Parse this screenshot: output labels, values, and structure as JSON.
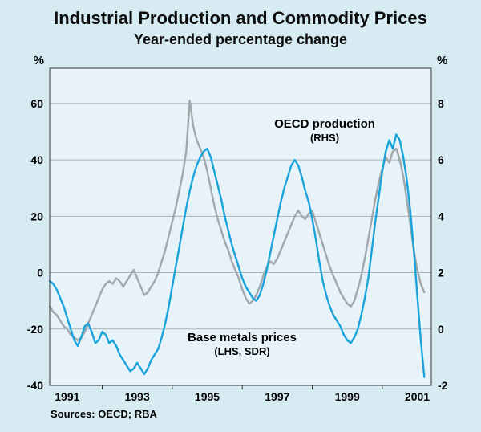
{
  "colors": {
    "page_bg": "#d7ebf3",
    "plot_bg": "#e7f3f9",
    "grid": "#a6b4ba",
    "frame": "#333333",
    "text": "#000000",
    "base_metals_line": "#19a3da",
    "oecd_line": "#a1a7aa"
  },
  "chart_data": {
    "type": "line",
    "title": "Industrial Production and Commodity Prices",
    "subtitle": "Year-ended percentage change",
    "source_note": "Sources: OECD; RBA",
    "grid": true,
    "axes": {
      "left_unit": "%",
      "right_unit": "%",
      "left_ticks": [
        60,
        40,
        20,
        0,
        -20,
        -40
      ],
      "right_ticks": [
        8,
        6,
        4,
        2,
        0,
        -2
      ],
      "x_tick_years": [
        1991,
        1993,
        1995,
        1997,
        1999,
        2001
      ],
      "x_minor_tick_years": [
        1992,
        1994,
        1996,
        1998,
        2000
      ]
    },
    "xlim": [
      1990.5,
      2001.4
    ],
    "left_ylim": [
      -40,
      72.5
    ],
    "right_ylim": [
      -2,
      9.25
    ],
    "x_start": 1990.5,
    "x_step": 0.1,
    "annotations": {
      "oecd": {
        "label": "OECD production",
        "sub": "(RHS)"
      },
      "base_metals": {
        "label": "Base metals prices",
        "sub": "(LHS, SDR)"
      }
    },
    "series": [
      {
        "id": "oecd-production",
        "name": "OECD production",
        "axis_note": "(RHS)",
        "axis": "right",
        "unit": "%",
        "color_key": "oecd_line",
        "y": [
          0.8,
          0.6,
          0.5,
          0.3,
          0.1,
          0.0,
          -0.2,
          -0.3,
          -0.4,
          -0.3,
          -0.1,
          0.2,
          0.5,
          0.8,
          1.1,
          1.4,
          1.6,
          1.7,
          1.6,
          1.8,
          1.7,
          1.5,
          1.7,
          1.9,
          2.1,
          1.8,
          1.5,
          1.2,
          1.3,
          1.5,
          1.7,
          2.0,
          2.4,
          2.8,
          3.3,
          3.8,
          4.3,
          4.9,
          5.5,
          6.3,
          8.1,
          7.2,
          6.7,
          6.4,
          6.1,
          5.6,
          5.0,
          4.4,
          3.9,
          3.5,
          3.1,
          2.8,
          2.4,
          2.1,
          1.8,
          1.4,
          1.1,
          0.9,
          1.0,
          1.2,
          1.5,
          1.9,
          2.2,
          2.4,
          2.3,
          2.5,
          2.8,
          3.1,
          3.4,
          3.7,
          4.0,
          4.2,
          4.0,
          3.9,
          4.1,
          4.2,
          3.8,
          3.4,
          3.0,
          2.6,
          2.2,
          1.9,
          1.6,
          1.3,
          1.1,
          0.9,
          0.8,
          1.0,
          1.4,
          1.9,
          2.5,
          3.2,
          3.9,
          4.6,
          5.2,
          5.7,
          6.1,
          5.9,
          6.3,
          6.4,
          6.0,
          5.4,
          4.6,
          3.7,
          2.8,
          2.1,
          1.6,
          1.3
        ]
      },
      {
        "id": "base-metals-prices",
        "name": "Base metals prices",
        "axis_note": "(LHS, SDR)",
        "axis": "left",
        "unit": "%",
        "color_key": "base_metals_line",
        "y": [
          -3,
          -4,
          -6,
          -9,
          -12,
          -16,
          -20,
          -24,
          -26,
          -23,
          -19,
          -18,
          -21,
          -25,
          -24,
          -21,
          -22,
          -25,
          -24,
          -26,
          -29,
          -31,
          -33,
          -35,
          -34,
          -32,
          -34,
          -36,
          -34,
          -31,
          -29,
          -27,
          -23,
          -18,
          -12,
          -5,
          2,
          9,
          16,
          23,
          29,
          34,
          38,
          41,
          43,
          44,
          41,
          36,
          31,
          26,
          20,
          15,
          10,
          6,
          2,
          -2,
          -5,
          -7,
          -9,
          -10,
          -8,
          -4,
          1,
          7,
          13,
          19,
          25,
          30,
          34,
          38,
          40,
          38,
          34,
          29,
          25,
          19,
          12,
          4,
          -3,
          -8,
          -12,
          -15,
          -17,
          -19,
          -22,
          -24,
          -25,
          -23,
          -20,
          -15,
          -9,
          -2,
          8,
          18,
          27,
          36,
          43,
          47,
          44,
          49,
          47,
          41,
          33,
          22,
          8,
          -8,
          -24,
          -37
        ]
      }
    ]
  }
}
